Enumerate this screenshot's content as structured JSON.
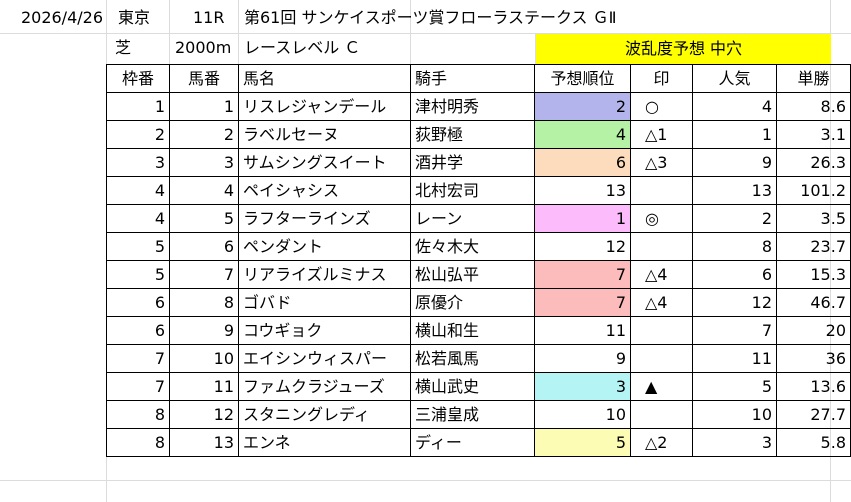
{
  "header": {
    "date": "2026/4/26",
    "venue": "東京",
    "race_no": "11R",
    "race_name": "第61回 サンケイスポーツ賞フローラステークス ＧⅡ",
    "surface": "芝",
    "distance": "2000m",
    "level": "レースレベル Ｃ",
    "banner": "波乱度予想 中穴"
  },
  "columns": [
    "枠番",
    "馬番",
    "馬名",
    "騎手",
    "予想順位",
    "印",
    "人気",
    "単勝"
  ],
  "colors": {
    "blue": "#b4b4ec",
    "green": "#b6f2a6",
    "orange": "#fcdcbc",
    "pink": "#fcbcfc",
    "red": "#fcbcbc",
    "cyan": "#b4f4f4",
    "yellow": "#fcfcb4",
    "banner": "#ffff00"
  },
  "rows": [
    {
      "waku": "1",
      "umaban": "1",
      "name": "リスレジャンデール",
      "jockey": "津村明秀",
      "rank": "2",
      "mark": "○",
      "ninki": "4",
      "odds": "8.6",
      "rank_color": "blue"
    },
    {
      "waku": "2",
      "umaban": "2",
      "name": "ラベルセーヌ",
      "jockey": "荻野極",
      "rank": "4",
      "mark": "△1",
      "ninki": "1",
      "odds": "3.1",
      "rank_color": "green"
    },
    {
      "waku": "3",
      "umaban": "3",
      "name": "サムシングスイート",
      "jockey": "酒井学",
      "rank": "6",
      "mark": "△3",
      "ninki": "9",
      "odds": "26.3",
      "rank_color": "orange"
    },
    {
      "waku": "4",
      "umaban": "4",
      "name": "ペイシャシス",
      "jockey": "北村宏司",
      "rank": "13",
      "mark": "",
      "ninki": "13",
      "odds": "101.2",
      "rank_color": ""
    },
    {
      "waku": "4",
      "umaban": "5",
      "name": "ラフターラインズ",
      "jockey": "レーン",
      "rank": "1",
      "mark": "◎",
      "ninki": "2",
      "odds": "3.5",
      "rank_color": "pink"
    },
    {
      "waku": "5",
      "umaban": "6",
      "name": "ペンダント",
      "jockey": "佐々木大",
      "rank": "12",
      "mark": "",
      "ninki": "8",
      "odds": "23.7",
      "rank_color": ""
    },
    {
      "waku": "5",
      "umaban": "7",
      "name": "リアライズルミナス",
      "jockey": "松山弘平",
      "rank": "7",
      "mark": "△4",
      "ninki": "6",
      "odds": "15.3",
      "rank_color": "red"
    },
    {
      "waku": "6",
      "umaban": "8",
      "name": "ゴバド",
      "jockey": "原優介",
      "rank": "7",
      "mark": "△4",
      "ninki": "12",
      "odds": "46.7",
      "rank_color": "red"
    },
    {
      "waku": "6",
      "umaban": "9",
      "name": "コウギョク",
      "jockey": "横山和生",
      "rank": "11",
      "mark": "",
      "ninki": "7",
      "odds": "20",
      "rank_color": ""
    },
    {
      "waku": "7",
      "umaban": "10",
      "name": "エイシンウィスパー",
      "jockey": "松若風馬",
      "rank": "9",
      "mark": "",
      "ninki": "11",
      "odds": "36",
      "rank_color": ""
    },
    {
      "waku": "7",
      "umaban": "11",
      "name": "ファムクラジューズ",
      "jockey": "横山武史",
      "rank": "3",
      "mark": "▲",
      "ninki": "5",
      "odds": "13.6",
      "rank_color": "cyan"
    },
    {
      "waku": "8",
      "umaban": "12",
      "name": "スタニングレディ",
      "jockey": "三浦皇成",
      "rank": "10",
      "mark": "",
      "ninki": "10",
      "odds": "27.7",
      "rank_color": ""
    },
    {
      "waku": "8",
      "umaban": "13",
      "name": "エンネ",
      "jockey": "ディー",
      "rank": "5",
      "mark": "△2",
      "ninki": "3",
      "odds": "5.8",
      "rank_color": "yellow"
    }
  ]
}
